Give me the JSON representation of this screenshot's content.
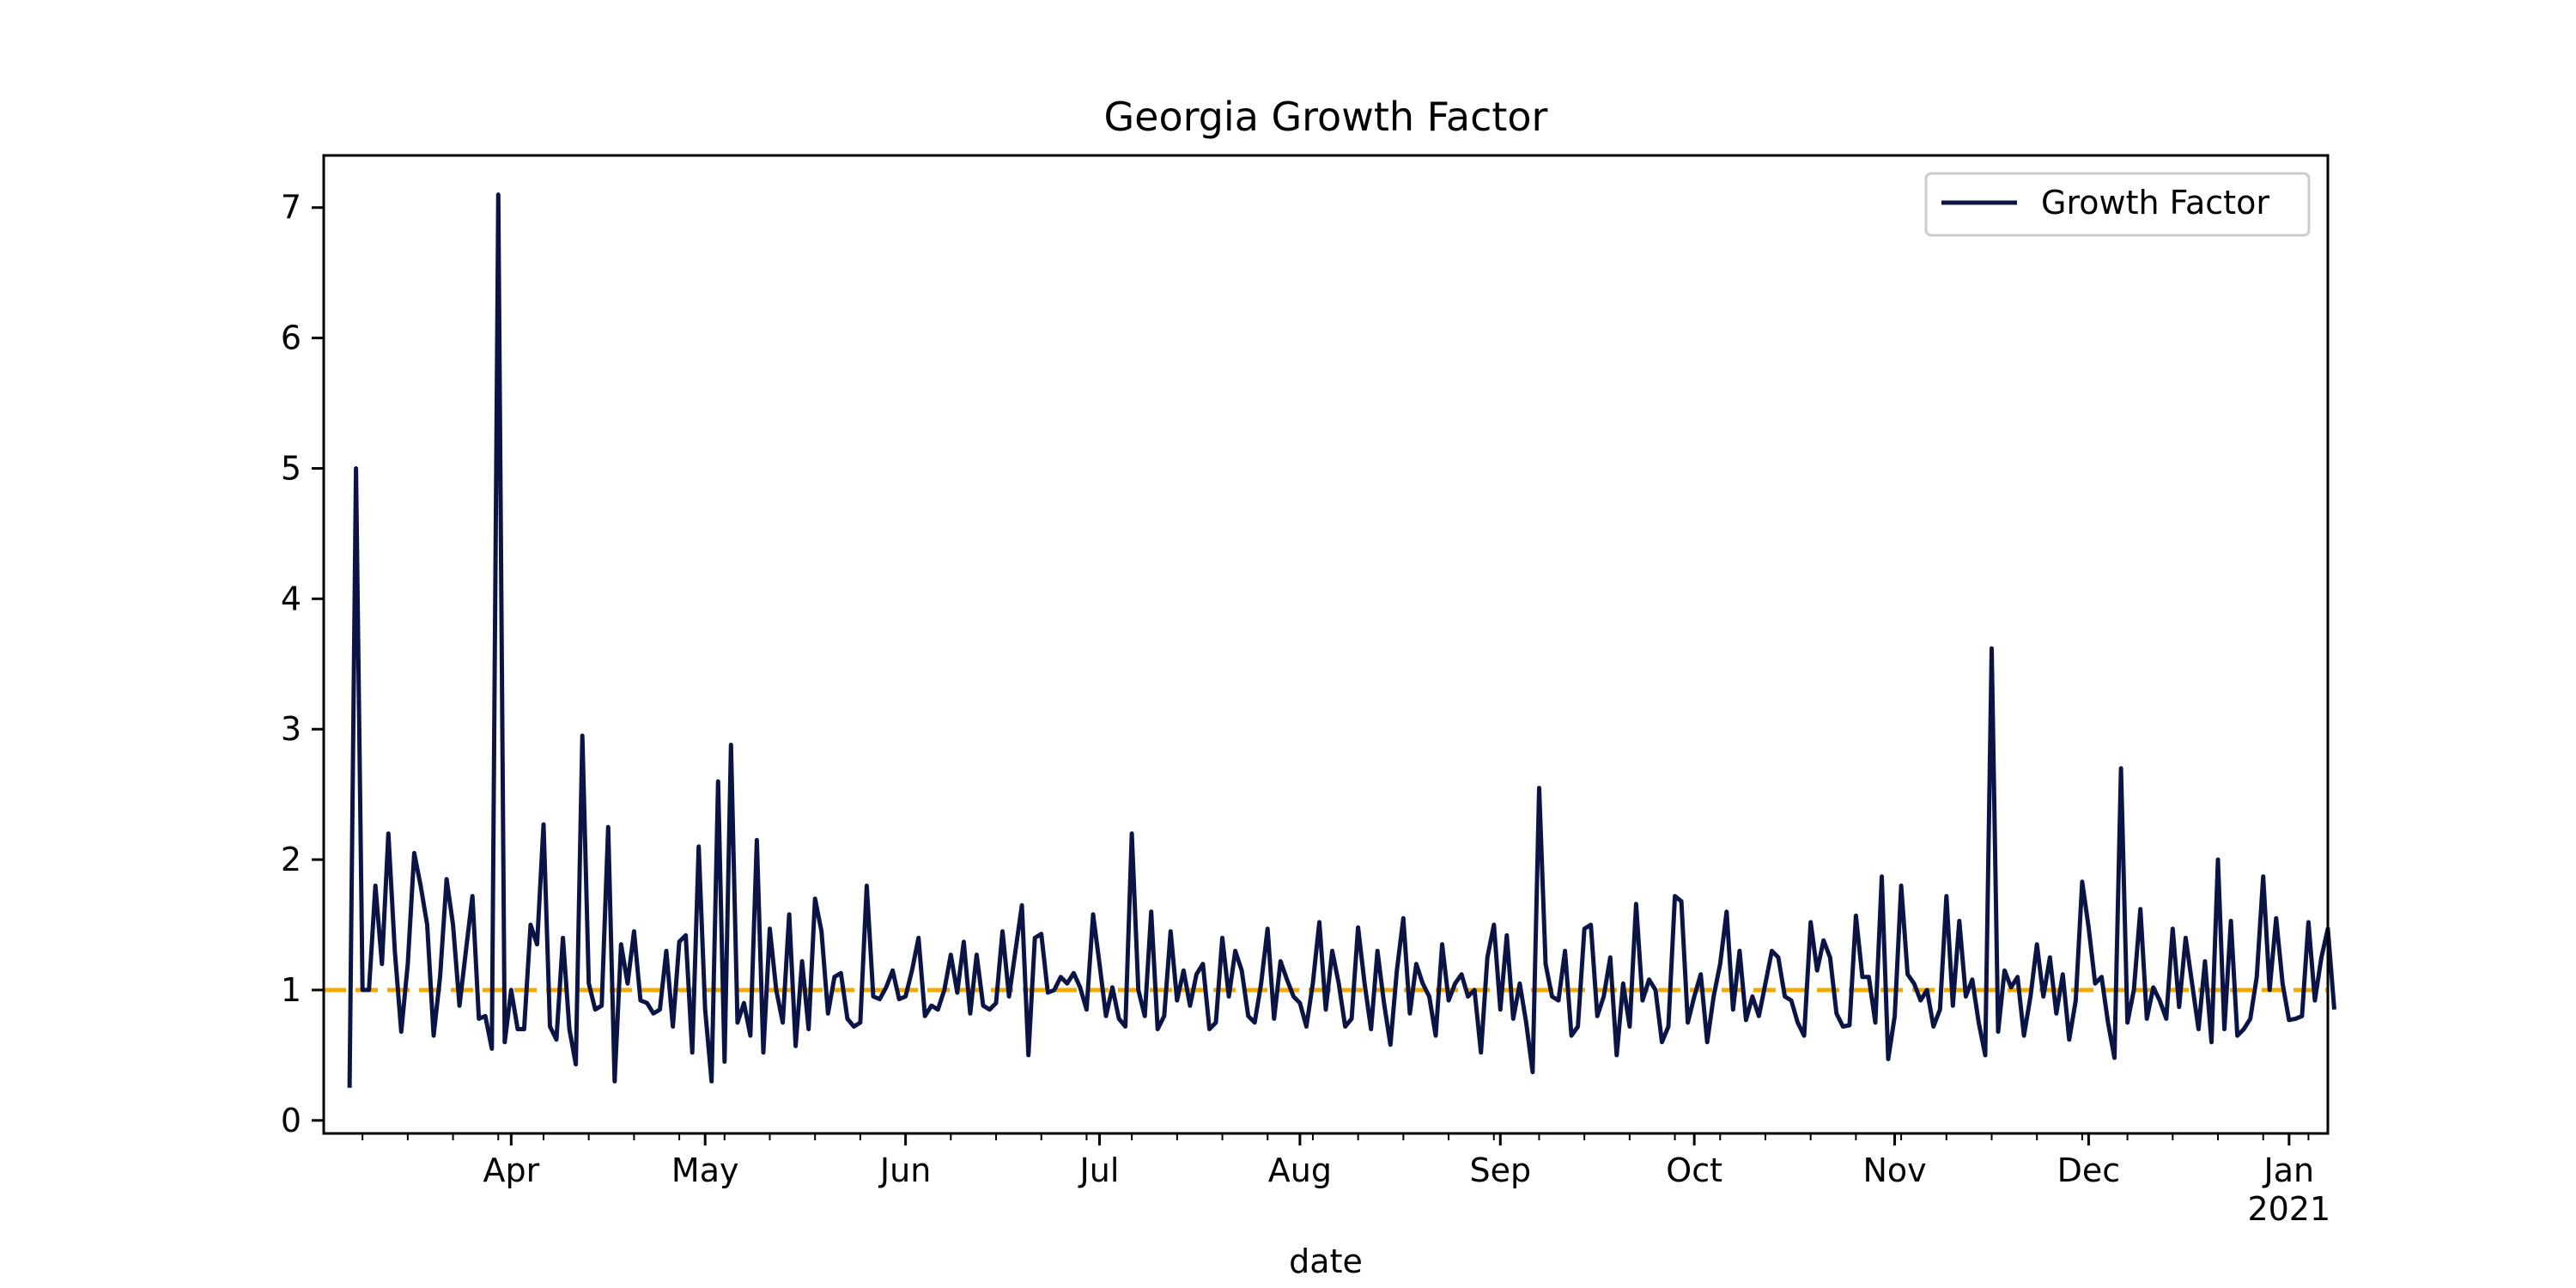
{
  "chart_data": {
    "type": "line",
    "title": "Georgia Growth Factor",
    "xlabel": "date",
    "ylabel": "",
    "x_range": [
      "2020-03-03",
      "2021-01-07"
    ],
    "ylim": [
      -0.1,
      7.4
    ],
    "x_ticks": [
      {
        "date": "2020-04-01",
        "label": "Apr",
        "sublabel": ""
      },
      {
        "date": "2020-05-01",
        "label": "May",
        "sublabel": ""
      },
      {
        "date": "2020-06-01",
        "label": "Jun",
        "sublabel": ""
      },
      {
        "date": "2020-07-01",
        "label": "Jul",
        "sublabel": ""
      },
      {
        "date": "2020-08-01",
        "label": "Aug",
        "sublabel": ""
      },
      {
        "date": "2020-09-01",
        "label": "Sep",
        "sublabel": ""
      },
      {
        "date": "2020-10-01",
        "label": "Oct",
        "sublabel": ""
      },
      {
        "date": "2020-11-01",
        "label": "Nov",
        "sublabel": ""
      },
      {
        "date": "2020-12-01",
        "label": "Dec",
        "sublabel": ""
      },
      {
        "date": "2021-01-01",
        "label": "Jan",
        "sublabel": "2021"
      }
    ],
    "y_ticks": [
      0,
      1,
      2,
      3,
      4,
      5,
      6,
      7
    ],
    "grid": false,
    "legend": {
      "position": "top-right",
      "entries": [
        "Growth Factor"
      ]
    },
    "reference_line": {
      "y": 1.0,
      "style": "dashed",
      "color": "#f5a800"
    },
    "series": [
      {
        "name": "Growth Factor",
        "color": "#0b1545",
        "start_date": "2020-03-07",
        "values": [
          0.25,
          5.0,
          1.0,
          1.0,
          1.8,
          1.2,
          2.2,
          1.3,
          0.68,
          1.2,
          2.05,
          1.8,
          1.5,
          0.65,
          1.1,
          1.85,
          1.5,
          0.88,
          1.3,
          1.72,
          0.78,
          0.8,
          0.55,
          7.1,
          0.6,
          1.0,
          0.7,
          0.7,
          1.5,
          1.35,
          2.27,
          0.72,
          0.62,
          1.4,
          0.7,
          0.43,
          2.95,
          1.05,
          0.85,
          0.88,
          2.25,
          0.3,
          1.35,
          1.05,
          1.45,
          0.92,
          0.9,
          0.82,
          0.85,
          1.3,
          0.72,
          1.37,
          1.42,
          0.52,
          2.1,
          0.85,
          0.3,
          2.6,
          0.45,
          2.88,
          0.75,
          0.9,
          0.65,
          2.15,
          0.52,
          1.47,
          1.0,
          0.75,
          1.58,
          0.57,
          1.22,
          0.7,
          1.7,
          1.45,
          0.82,
          1.1,
          1.13,
          0.78,
          0.72,
          0.75,
          1.8,
          0.95,
          0.93,
          1.02,
          1.15,
          0.93,
          0.95,
          1.15,
          1.4,
          0.8,
          0.88,
          0.85,
          1.0,
          1.27,
          0.98,
          1.37,
          0.82,
          1.27,
          0.88,
          0.85,
          0.9,
          1.45,
          0.95,
          1.3,
          1.65,
          0.5,
          1.4,
          1.43,
          0.98,
          1.0,
          1.1,
          1.05,
          1.13,
          1.02,
          0.85,
          1.58,
          1.2,
          0.8,
          1.02,
          0.78,
          0.72,
          2.2,
          1.0,
          0.8,
          1.6,
          0.7,
          0.8,
          1.45,
          0.92,
          1.15,
          0.88,
          1.12,
          1.2,
          0.7,
          0.75,
          1.4,
          0.95,
          1.3,
          1.15,
          0.8,
          0.75,
          1.05,
          1.47,
          0.78,
          1.22,
          1.08,
          0.95,
          0.9,
          0.72,
          1.05,
          1.52,
          0.85,
          1.3,
          1.05,
          0.72,
          0.78,
          1.48,
          1.05,
          0.7,
          1.3,
          0.9,
          0.58,
          1.15,
          1.55,
          0.82,
          1.2,
          1.05,
          0.95,
          0.65,
          1.35,
          0.92,
          1.05,
          1.12,
          0.95,
          1.0,
          0.52,
          1.25,
          1.5,
          0.85,
          1.42,
          0.78,
          1.05,
          0.75,
          0.37,
          2.55,
          1.2,
          0.95,
          0.92,
          1.3,
          0.65,
          0.72,
          1.47,
          1.5,
          0.8,
          0.95,
          1.25,
          0.5,
          1.05,
          0.72,
          1.66,
          0.92,
          1.08,
          1.0,
          0.6,
          0.72,
          1.72,
          1.68,
          0.75,
          0.95,
          1.12,
          0.6,
          0.95,
          1.2,
          1.6,
          0.85,
          1.3,
          0.77,
          0.95,
          0.8,
          1.05,
          1.3,
          1.25,
          0.95,
          0.92,
          0.75,
          0.65,
          1.52,
          1.15,
          1.38,
          1.25,
          0.82,
          0.72,
          0.73,
          1.57,
          1.1,
          1.1,
          0.75,
          1.87,
          0.47,
          0.8,
          1.8,
          1.12,
          1.05,
          0.92,
          1.0,
          0.72,
          0.85,
          1.72,
          0.88,
          1.53,
          0.95,
          1.08,
          0.75,
          0.5,
          3.62,
          0.68,
          1.15,
          1.02,
          1.1,
          0.65,
          0.95,
          1.35,
          0.95,
          1.25,
          0.82,
          1.12,
          0.62,
          0.92,
          1.83,
          1.48,
          1.05,
          1.1,
          0.75,
          0.48,
          2.7,
          0.75,
          1.0,
          1.62,
          0.78,
          1.02,
          0.92,
          0.78,
          1.47,
          0.87,
          1.4,
          1.05,
          0.7,
          1.22,
          0.6,
          2.0,
          0.7,
          1.53,
          0.65,
          0.7,
          0.78,
          1.1,
          1.87,
          1.0,
          1.55,
          1.05,
          0.77,
          0.78,
          0.8,
          1.52,
          0.92,
          1.25,
          1.47,
          0.85
        ]
      }
    ]
  }
}
